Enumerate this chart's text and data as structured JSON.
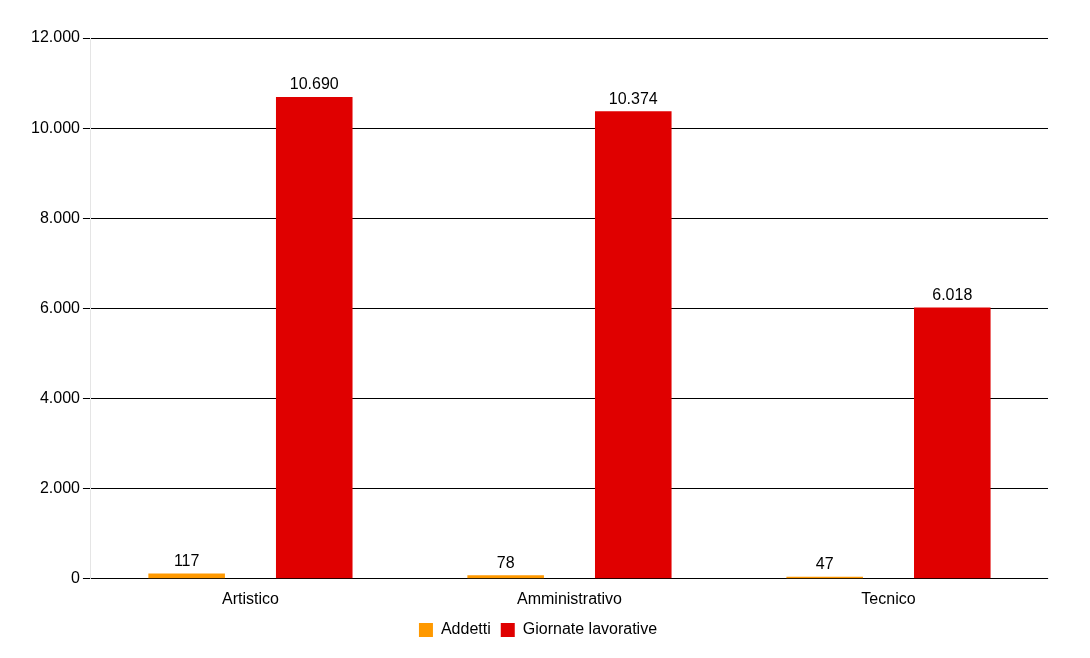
{
  "chart_data": {
    "type": "bar",
    "categories": [
      "Artistico",
      "Amministrativo",
      "Tecnico"
    ],
    "series": [
      {
        "name": "Addetti",
        "color": "#ff9900",
        "values": [
          117,
          78,
          47
        ],
        "value_labels": [
          "117",
          "78",
          "47"
        ]
      },
      {
        "name": "Giornate lavorative",
        "color": "#e00000",
        "values": [
          10690,
          10374,
          6018
        ],
        "value_labels": [
          "10.690",
          "10.374",
          "6.018"
        ]
      }
    ],
    "ylim": [
      0,
      12000
    ],
    "yticks": [
      0,
      {
        "value": 2000,
        "label": "2.000"
      },
      {
        "value": 4000,
        "label": "4.000"
      },
      {
        "value": 6000,
        "label": "6.000"
      },
      {
        "value": 8000,
        "label": "8.000"
      },
      {
        "value": 10000,
        "label": "10.000"
      },
      {
        "value": 12000,
        "label": "12.000"
      }
    ],
    "grid": "y",
    "legend": "bottom"
  }
}
